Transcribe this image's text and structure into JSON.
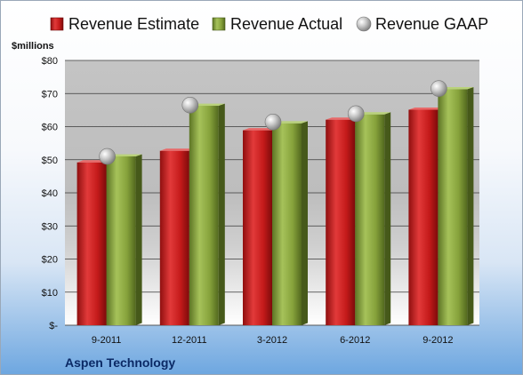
{
  "chart_data": {
    "type": "bar",
    "ylabel": "$millions",
    "categories": [
      "9-2011",
      "12-2011",
      "3-2012",
      "6-2012",
      "9-2012"
    ],
    "series": [
      {
        "name": "Revenue Estimate",
        "kind": "bar",
        "color": "#cc2222",
        "values": [
          49.2,
          52.7,
          58.9,
          62.1,
          65.1
        ]
      },
      {
        "name": "Revenue Actual",
        "kind": "bar",
        "color": "#8aa63e",
        "values": [
          51.0,
          66.3,
          61.0,
          63.7,
          71.3
        ]
      },
      {
        "name": "Revenue GAAP",
        "kind": "marker",
        "color": "#b8b8b8",
        "values": [
          51.0,
          66.5,
          61.4,
          63.9,
          71.5
        ]
      }
    ],
    "ylim": [
      0,
      80
    ],
    "yticks": [
      0,
      10,
      20,
      30,
      40,
      50,
      60,
      70,
      80
    ],
    "ytick_labels": [
      "$-",
      "$10",
      "$20",
      "$30",
      "$40",
      "$50",
      "$60",
      "$70",
      "$80"
    ],
    "grid": true,
    "legend": "top",
    "company": "Aspen Technology"
  }
}
